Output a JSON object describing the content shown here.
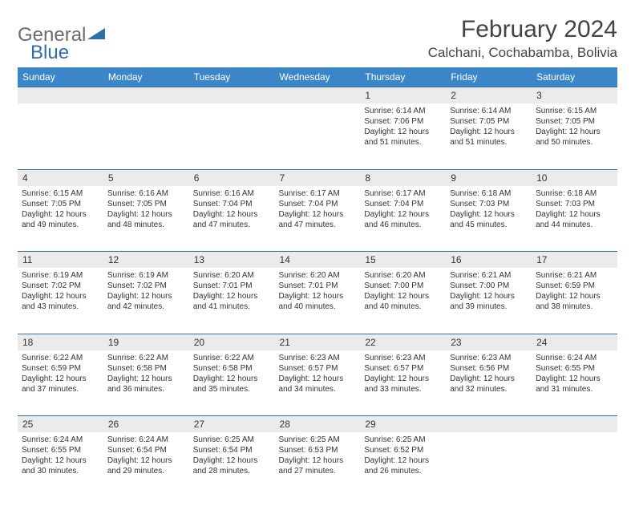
{
  "brand": {
    "text_gray": "General",
    "text_blue": "Blue"
  },
  "title": "February 2024",
  "location": "Calchani, Cochabamba, Bolivia",
  "colors": {
    "header_bg": "#3a86c8",
    "header_text": "#ffffff",
    "daynum_bg": "#ebebeb",
    "row_border": "#3a6fa0",
    "brand_gray": "#6b6b6b",
    "brand_blue": "#2f6fa7"
  },
  "day_headers": [
    "Sunday",
    "Monday",
    "Tuesday",
    "Wednesday",
    "Thursday",
    "Friday",
    "Saturday"
  ],
  "weeks": [
    [
      null,
      null,
      null,
      null,
      {
        "n": "1",
        "sr": "Sunrise: 6:14 AM",
        "ss": "Sunset: 7:06 PM",
        "dl": "Daylight: 12 hours and 51 minutes."
      },
      {
        "n": "2",
        "sr": "Sunrise: 6:14 AM",
        "ss": "Sunset: 7:05 PM",
        "dl": "Daylight: 12 hours and 51 minutes."
      },
      {
        "n": "3",
        "sr": "Sunrise: 6:15 AM",
        "ss": "Sunset: 7:05 PM",
        "dl": "Daylight: 12 hours and 50 minutes."
      }
    ],
    [
      {
        "n": "4",
        "sr": "Sunrise: 6:15 AM",
        "ss": "Sunset: 7:05 PM",
        "dl": "Daylight: 12 hours and 49 minutes."
      },
      {
        "n": "5",
        "sr": "Sunrise: 6:16 AM",
        "ss": "Sunset: 7:05 PM",
        "dl": "Daylight: 12 hours and 48 minutes."
      },
      {
        "n": "6",
        "sr": "Sunrise: 6:16 AM",
        "ss": "Sunset: 7:04 PM",
        "dl": "Daylight: 12 hours and 47 minutes."
      },
      {
        "n": "7",
        "sr": "Sunrise: 6:17 AM",
        "ss": "Sunset: 7:04 PM",
        "dl": "Daylight: 12 hours and 47 minutes."
      },
      {
        "n": "8",
        "sr": "Sunrise: 6:17 AM",
        "ss": "Sunset: 7:04 PM",
        "dl": "Daylight: 12 hours and 46 minutes."
      },
      {
        "n": "9",
        "sr": "Sunrise: 6:18 AM",
        "ss": "Sunset: 7:03 PM",
        "dl": "Daylight: 12 hours and 45 minutes."
      },
      {
        "n": "10",
        "sr": "Sunrise: 6:18 AM",
        "ss": "Sunset: 7:03 PM",
        "dl": "Daylight: 12 hours and 44 minutes."
      }
    ],
    [
      {
        "n": "11",
        "sr": "Sunrise: 6:19 AM",
        "ss": "Sunset: 7:02 PM",
        "dl": "Daylight: 12 hours and 43 minutes."
      },
      {
        "n": "12",
        "sr": "Sunrise: 6:19 AM",
        "ss": "Sunset: 7:02 PM",
        "dl": "Daylight: 12 hours and 42 minutes."
      },
      {
        "n": "13",
        "sr": "Sunrise: 6:20 AM",
        "ss": "Sunset: 7:01 PM",
        "dl": "Daylight: 12 hours and 41 minutes."
      },
      {
        "n": "14",
        "sr": "Sunrise: 6:20 AM",
        "ss": "Sunset: 7:01 PM",
        "dl": "Daylight: 12 hours and 40 minutes."
      },
      {
        "n": "15",
        "sr": "Sunrise: 6:20 AM",
        "ss": "Sunset: 7:00 PM",
        "dl": "Daylight: 12 hours and 40 minutes."
      },
      {
        "n": "16",
        "sr": "Sunrise: 6:21 AM",
        "ss": "Sunset: 7:00 PM",
        "dl": "Daylight: 12 hours and 39 minutes."
      },
      {
        "n": "17",
        "sr": "Sunrise: 6:21 AM",
        "ss": "Sunset: 6:59 PM",
        "dl": "Daylight: 12 hours and 38 minutes."
      }
    ],
    [
      {
        "n": "18",
        "sr": "Sunrise: 6:22 AM",
        "ss": "Sunset: 6:59 PM",
        "dl": "Daylight: 12 hours and 37 minutes."
      },
      {
        "n": "19",
        "sr": "Sunrise: 6:22 AM",
        "ss": "Sunset: 6:58 PM",
        "dl": "Daylight: 12 hours and 36 minutes."
      },
      {
        "n": "20",
        "sr": "Sunrise: 6:22 AM",
        "ss": "Sunset: 6:58 PM",
        "dl": "Daylight: 12 hours and 35 minutes."
      },
      {
        "n": "21",
        "sr": "Sunrise: 6:23 AM",
        "ss": "Sunset: 6:57 PM",
        "dl": "Daylight: 12 hours and 34 minutes."
      },
      {
        "n": "22",
        "sr": "Sunrise: 6:23 AM",
        "ss": "Sunset: 6:57 PM",
        "dl": "Daylight: 12 hours and 33 minutes."
      },
      {
        "n": "23",
        "sr": "Sunrise: 6:23 AM",
        "ss": "Sunset: 6:56 PM",
        "dl": "Daylight: 12 hours and 32 minutes."
      },
      {
        "n": "24",
        "sr": "Sunrise: 6:24 AM",
        "ss": "Sunset: 6:55 PM",
        "dl": "Daylight: 12 hours and 31 minutes."
      }
    ],
    [
      {
        "n": "25",
        "sr": "Sunrise: 6:24 AM",
        "ss": "Sunset: 6:55 PM",
        "dl": "Daylight: 12 hours and 30 minutes."
      },
      {
        "n": "26",
        "sr": "Sunrise: 6:24 AM",
        "ss": "Sunset: 6:54 PM",
        "dl": "Daylight: 12 hours and 29 minutes."
      },
      {
        "n": "27",
        "sr": "Sunrise: 6:25 AM",
        "ss": "Sunset: 6:54 PM",
        "dl": "Daylight: 12 hours and 28 minutes."
      },
      {
        "n": "28",
        "sr": "Sunrise: 6:25 AM",
        "ss": "Sunset: 6:53 PM",
        "dl": "Daylight: 12 hours and 27 minutes."
      },
      {
        "n": "29",
        "sr": "Sunrise: 6:25 AM",
        "ss": "Sunset: 6:52 PM",
        "dl": "Daylight: 12 hours and 26 minutes."
      },
      null,
      null
    ]
  ]
}
